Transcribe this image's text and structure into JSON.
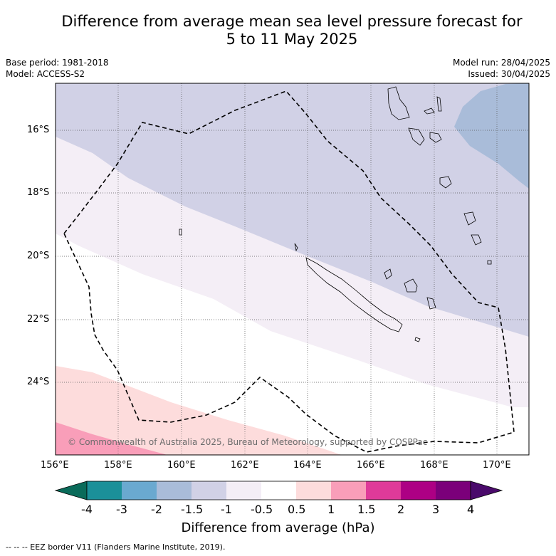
{
  "title_line1": "Difference from average mean sea level pressure forecast for",
  "title_line2": "5 to 11 May 2025",
  "base_period": "Base period: 1981-2018",
  "model": "Model: ACCESS-S2",
  "model_run": "Model run: 28/04/2025",
  "issued": "Issued: 30/04/2025",
  "copyright": "© Commonwealth of Australia 2025, Bureau of Meteorology, supported by COSPPac",
  "lat_labels": [
    "16°S",
    "18°S",
    "20°S",
    "22°S",
    "24°S"
  ],
  "lon_labels": [
    "156°E",
    "158°E",
    "160°E",
    "162°E",
    "164°E",
    "166°E",
    "168°E",
    "170°E"
  ],
  "colorbar": {
    "ticks": [
      "-4",
      "-3",
      "-2",
      "-1.5",
      "-1",
      "-0.5",
      "0.5",
      "1",
      "1.5",
      "2",
      "3",
      "4"
    ],
    "colors": [
      "#1b9099",
      "#6aa9d0",
      "#a9bcd9",
      "#d1d1e6",
      "#f4eef6",
      "#ffffff",
      "#fddcdc",
      "#f99eb9",
      "#df3a99",
      "#ad0084",
      "#7b007a"
    ],
    "under_color": "#0a6b5a",
    "over_color": "#4a0a6b",
    "title": "Difference from average (hPa)"
  },
  "legend_text": "--  --  -- EEZ border V11 (Flanders Marine Institute, 2019)."
}
